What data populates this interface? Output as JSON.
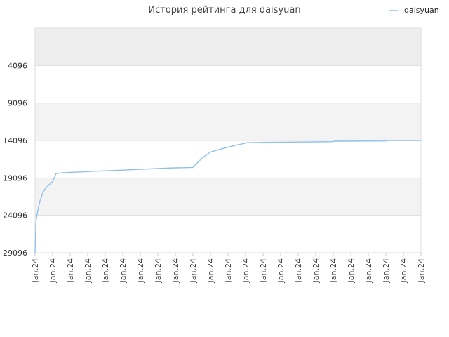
{
  "chart_data": {
    "type": "line",
    "title": "История рейтинга для daisyuan",
    "xlabel": "",
    "ylabel": "",
    "y_reversed": true,
    "ylim": [
      29096,
      -904
    ],
    "y_ticks": [
      4096,
      9096,
      14096,
      19096,
      24096,
      29096
    ],
    "x_tick_labels": [
      "Jan.24",
      "Jan.24",
      "Jan.24",
      "Jan.24",
      "Jan.24",
      "Jan.24",
      "Jan.24",
      "Jan.24",
      "Jan.24",
      "Jan.24",
      "Jan.24",
      "Jan.24",
      "Jan.24",
      "Jan.24",
      "Jan.24",
      "Jan.24",
      "Jan.24",
      "Jan.24",
      "Jan.24",
      "Jan.24",
      "Jan.24",
      "Jan.24",
      "Jan.24"
    ],
    "grid": true,
    "legend_position": "top-right",
    "series_color": "#90c0e8",
    "band_colors": [
      "#eeeeee",
      "#ffffff",
      "#f3f3f3",
      "#ffffff",
      "#f3f3f3",
      "#ffffff"
    ],
    "series": [
      {
        "name": "daisyuan",
        "x": [
          0,
          0.05,
          0.1,
          0.2,
          0.3,
          0.45,
          0.6,
          0.8,
          1.0,
          1.2,
          1.6,
          2.0,
          3.0,
          4.0,
          5.0,
          6.0,
          7.0,
          8.0,
          9.0,
          9.5,
          10.0,
          10.5,
          11.0,
          11.5,
          12.0,
          12.05,
          13.0,
          14.0,
          15.0,
          16.0,
          17.0,
          17.05,
          18.0,
          19.0,
          20.0,
          20.05,
          21.0,
          22.0
        ],
        "values": [
          29096,
          25000,
          24096,
          23000,
          22000,
          21000,
          20500,
          20000,
          19600,
          18500,
          18400,
          18350,
          18250,
          18150,
          18050,
          17950,
          17850,
          17750,
          17700,
          16500,
          15650,
          15300,
          15000,
          14700,
          14450,
          14400,
          14350,
          14320,
          14300,
          14280,
          14260,
          14200,
          14180,
          14170,
          14160,
          14100,
          14096,
          14096
        ]
      }
    ]
  }
}
